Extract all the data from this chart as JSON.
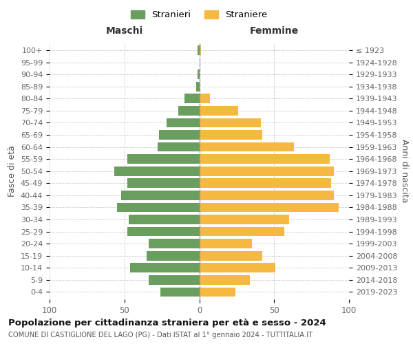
{
  "age_groups": [
    "100+",
    "95-99",
    "90-94",
    "85-89",
    "80-84",
    "75-79",
    "70-74",
    "65-69",
    "60-64",
    "55-59",
    "50-54",
    "45-49",
    "40-44",
    "35-39",
    "30-34",
    "25-29",
    "20-24",
    "15-19",
    "10-14",
    "5-9",
    "0-4"
  ],
  "birth_years": [
    "≤ 1923",
    "1924-1928",
    "1929-1933",
    "1934-1938",
    "1939-1943",
    "1944-1948",
    "1949-1953",
    "1954-1958",
    "1959-1963",
    "1964-1968",
    "1969-1973",
    "1974-1978",
    "1979-1983",
    "1984-1988",
    "1989-1993",
    "1994-1998",
    "1999-2003",
    "2004-2008",
    "2009-2013",
    "2014-2018",
    "2019-2023"
  ],
  "males": [
    1,
    0,
    1,
    2,
    10,
    14,
    22,
    27,
    28,
    48,
    57,
    48,
    52,
    55,
    47,
    48,
    34,
    35,
    46,
    34,
    26
  ],
  "females": [
    1,
    0,
    0,
    0,
    7,
    26,
    41,
    42,
    63,
    87,
    90,
    88,
    90,
    93,
    60,
    57,
    35,
    42,
    51,
    34,
    24
  ],
  "male_color": "#6a9e5e",
  "female_color": "#f5b942",
  "male_label": "Stranieri",
  "female_label": "Straniere",
  "title": "Popolazione per cittadinanza straniera per età e sesso - 2024",
  "subtitle": "COMUNE DI CASTIGLIONE DEL LAGO (PG) - Dati ISTAT al 1° gennaio 2024 - TUTTITALIA.IT",
  "xlabel_left": "Maschi",
  "xlabel_right": "Femmine",
  "ylabel_left": "Fasce di età",
  "ylabel_right": "Anni di nascita",
  "xlim": 100,
  "bg_color": "#ffffff",
  "grid_color": "#cccccc"
}
